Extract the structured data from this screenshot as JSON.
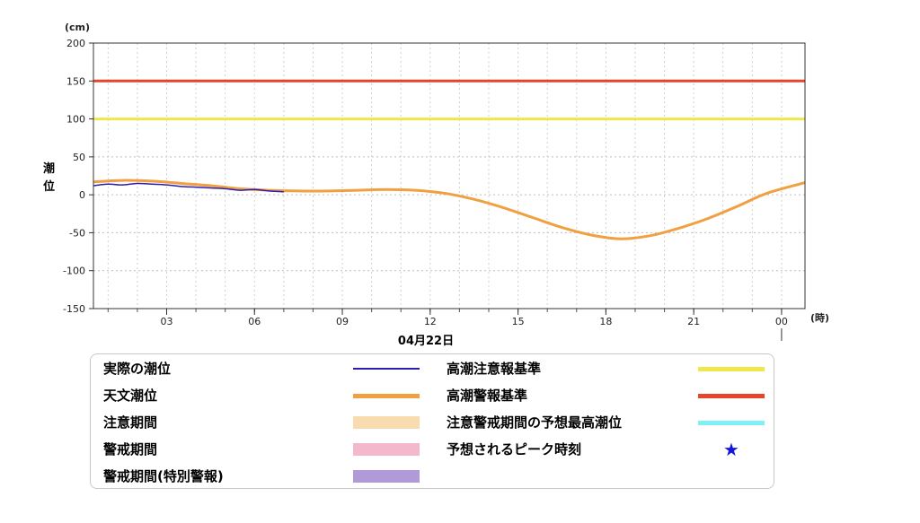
{
  "chart_data": {
    "type": "line",
    "y_unit": "(cm)",
    "x_unit": "(時)",
    "ylabel": "潮位",
    "date_label": "04月22日",
    "ylim": [
      -150,
      200
    ],
    "yticks": [
      200,
      150,
      100,
      50,
      0,
      -50,
      -100,
      -150
    ],
    "xlim_hours": [
      0.5,
      24.8
    ],
    "xticks": [
      {
        "hour": 3,
        "label": "03"
      },
      {
        "hour": 6,
        "label": "06"
      },
      {
        "hour": 9,
        "label": "09"
      },
      {
        "hour": 12,
        "label": "12"
      },
      {
        "hour": 15,
        "label": "15"
      },
      {
        "hour": 18,
        "label": "18"
      },
      {
        "hour": 21,
        "label": "21"
      },
      {
        "hour": 24,
        "label": "00"
      }
    ],
    "thresholds": [
      {
        "name": "高潮警報基準",
        "value": 150,
        "color": "#e8442a"
      },
      {
        "name": "高潮注意報基準",
        "value": 100,
        "color": "#efe84a"
      }
    ],
    "series": [
      {
        "name": "天文潮位",
        "color": "#f0a040",
        "x": [
          0.5,
          1.5,
          2.5,
          3.5,
          4.5,
          5.5,
          6.5,
          7.5,
          8.5,
          9.5,
          10.5,
          11.5,
          12.5,
          13.5,
          14.5,
          15.5,
          16.5,
          17.5,
          18.5,
          19.5,
          20.5,
          21.5,
          22.5,
          23.5,
          24.8
        ],
        "values": [
          17,
          19,
          18,
          15,
          12,
          8,
          6,
          5,
          5,
          6,
          7,
          6,
          2,
          -6,
          -17,
          -30,
          -43,
          -53,
          -58,
          -54,
          -44,
          -31,
          -15,
          2,
          16
        ]
      },
      {
        "name": "実際の潮位",
        "color": "#2a1fb0",
        "x": [
          0.5,
          1.0,
          1.5,
          2.0,
          2.5,
          3.0,
          3.5,
          4.0,
          4.5,
          5.0,
          5.5,
          6.0,
          6.5,
          7.0
        ],
        "values": [
          12,
          14,
          13,
          15,
          14,
          13,
          11,
          10,
          9,
          8,
          6,
          7,
          5,
          4
        ]
      }
    ]
  },
  "legend": {
    "items_left": [
      {
        "label": "実際の潮位",
        "color": "#2a1fb0",
        "kind": "line"
      },
      {
        "label": "天文潮位",
        "color": "#f0a040",
        "kind": "line"
      },
      {
        "label": "注意期間",
        "color": "#f8dcb0",
        "kind": "band"
      },
      {
        "label": "警戒期間",
        "color": "#f3b8cc",
        "kind": "band"
      },
      {
        "label": "警戒期間(特別警報)",
        "color": "#b09ad8",
        "kind": "band"
      }
    ],
    "items_right": [
      {
        "label": "高潮注意報基準",
        "color": "#efe84a",
        "kind": "line"
      },
      {
        "label": "高潮警報基準",
        "color": "#e8442a",
        "kind": "line"
      },
      {
        "label": "注意警戒期間の予想最高潮位",
        "color": "#7ff0f4",
        "kind": "line"
      },
      {
        "label": "予想されるピーク時刻",
        "color": "#1414e0",
        "kind": "star",
        "symbol": "★"
      }
    ]
  }
}
